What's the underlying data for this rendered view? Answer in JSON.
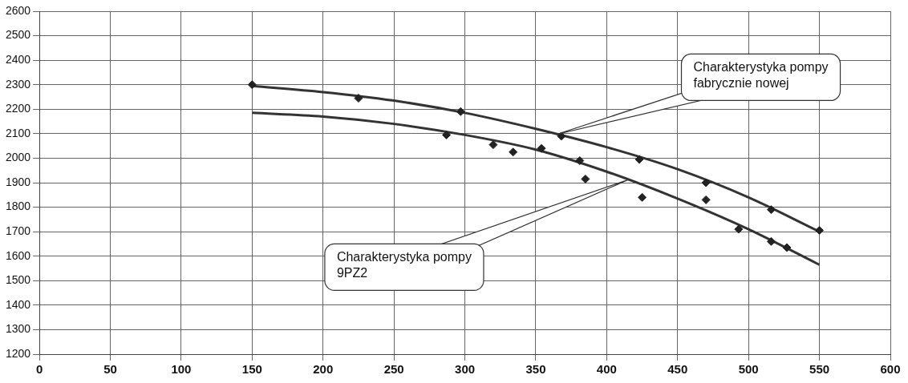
{
  "chart_data": {
    "type": "scatter",
    "xlim": [
      0,
      600
    ],
    "xticks": [
      0,
      50,
      100,
      150,
      200,
      250,
      300,
      350,
      400,
      450,
      500,
      550,
      600
    ],
    "ylim": [
      1200,
      2600
    ],
    "yticks": [
      1200,
      1300,
      1400,
      1500,
      1600,
      1700,
      1800,
      1900,
      2000,
      2100,
      2200,
      2300,
      2400,
      2500,
      2600
    ],
    "grid": true,
    "legend": false,
    "series": [
      {
        "type": "scatter",
        "marker": "diamond",
        "color": "#222222",
        "x": [
          150,
          225,
          297,
          368,
          423,
          470,
          516,
          550
        ],
        "values": [
          2300,
          2245,
          2190,
          2090,
          1995,
          1900,
          1790,
          1705
        ]
      },
      {
        "type": "scatter",
        "marker": "diamond",
        "color": "#222222",
        "x": [
          287,
          320,
          334,
          354,
          381,
          385,
          425,
          470,
          493,
          516,
          527
        ],
        "values": [
          2095,
          2055,
          2025,
          2040,
          1990,
          1915,
          1840,
          1830,
          1710,
          1660,
          1635
        ]
      },
      {
        "type": "line",
        "marker": "none",
        "color": "#333333",
        "x": [
          150,
          200,
          250,
          300,
          350,
          400,
          450,
          500,
          550
        ],
        "values": [
          2295,
          2270,
          2235,
          2185,
          2120,
          2045,
          1955,
          1840,
          1700
        ]
      },
      {
        "type": "line",
        "marker": "none",
        "color": "#333333",
        "x": [
          150,
          200,
          250,
          300,
          350,
          400,
          450,
          500,
          550
        ],
        "values": [
          2185,
          2170,
          2140,
          2095,
          2035,
          1945,
          1835,
          1710,
          1565
        ]
      }
    ],
    "annotations": [
      {
        "text": "Charakterystyka pompy fabrycznie nowej",
        "x": 365,
        "y": 2098
      },
      {
        "text": "Charakterystyka pompy 9PZ2",
        "x": 415,
        "y": 1912
      }
    ]
  }
}
